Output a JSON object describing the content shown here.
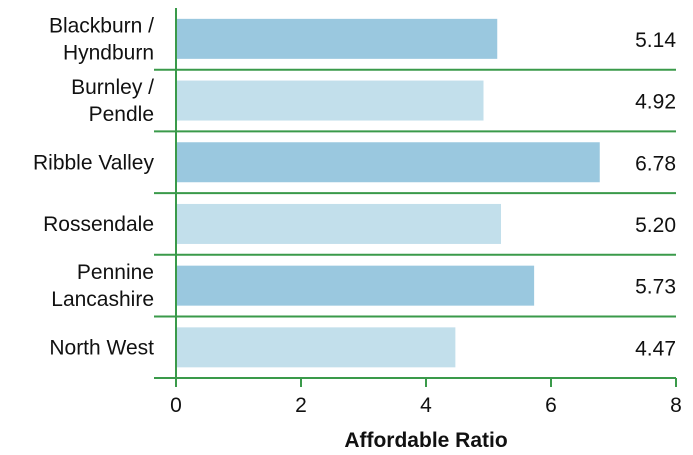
{
  "chart_data": {
    "type": "bar",
    "orientation": "horizontal",
    "categories": [
      [
        "Blackburn /",
        "Hyndburn"
      ],
      [
        "Burnley /",
        "Pendle"
      ],
      [
        "Ribble Valley"
      ],
      [
        "Rossendale"
      ],
      [
        "Pennine",
        "Lancashire"
      ],
      [
        "North West"
      ]
    ],
    "values": [
      5.14,
      4.92,
      6.78,
      5.2,
      5.73,
      4.47
    ],
    "value_labels": [
      "5.14",
      "4.92",
      "6.78",
      "5.20",
      "5.73",
      "4.47"
    ],
    "title": "",
    "xlabel": "Affordable Ratio",
    "ylabel": "",
    "xlim": [
      0,
      8
    ],
    "xticks": [
      0,
      2,
      4,
      6,
      8
    ],
    "grid": false,
    "colors": {
      "dark_bar": "#9ac8df",
      "light_bar": "#c2dfeb",
      "axis": "#3a9a4a"
    }
  }
}
